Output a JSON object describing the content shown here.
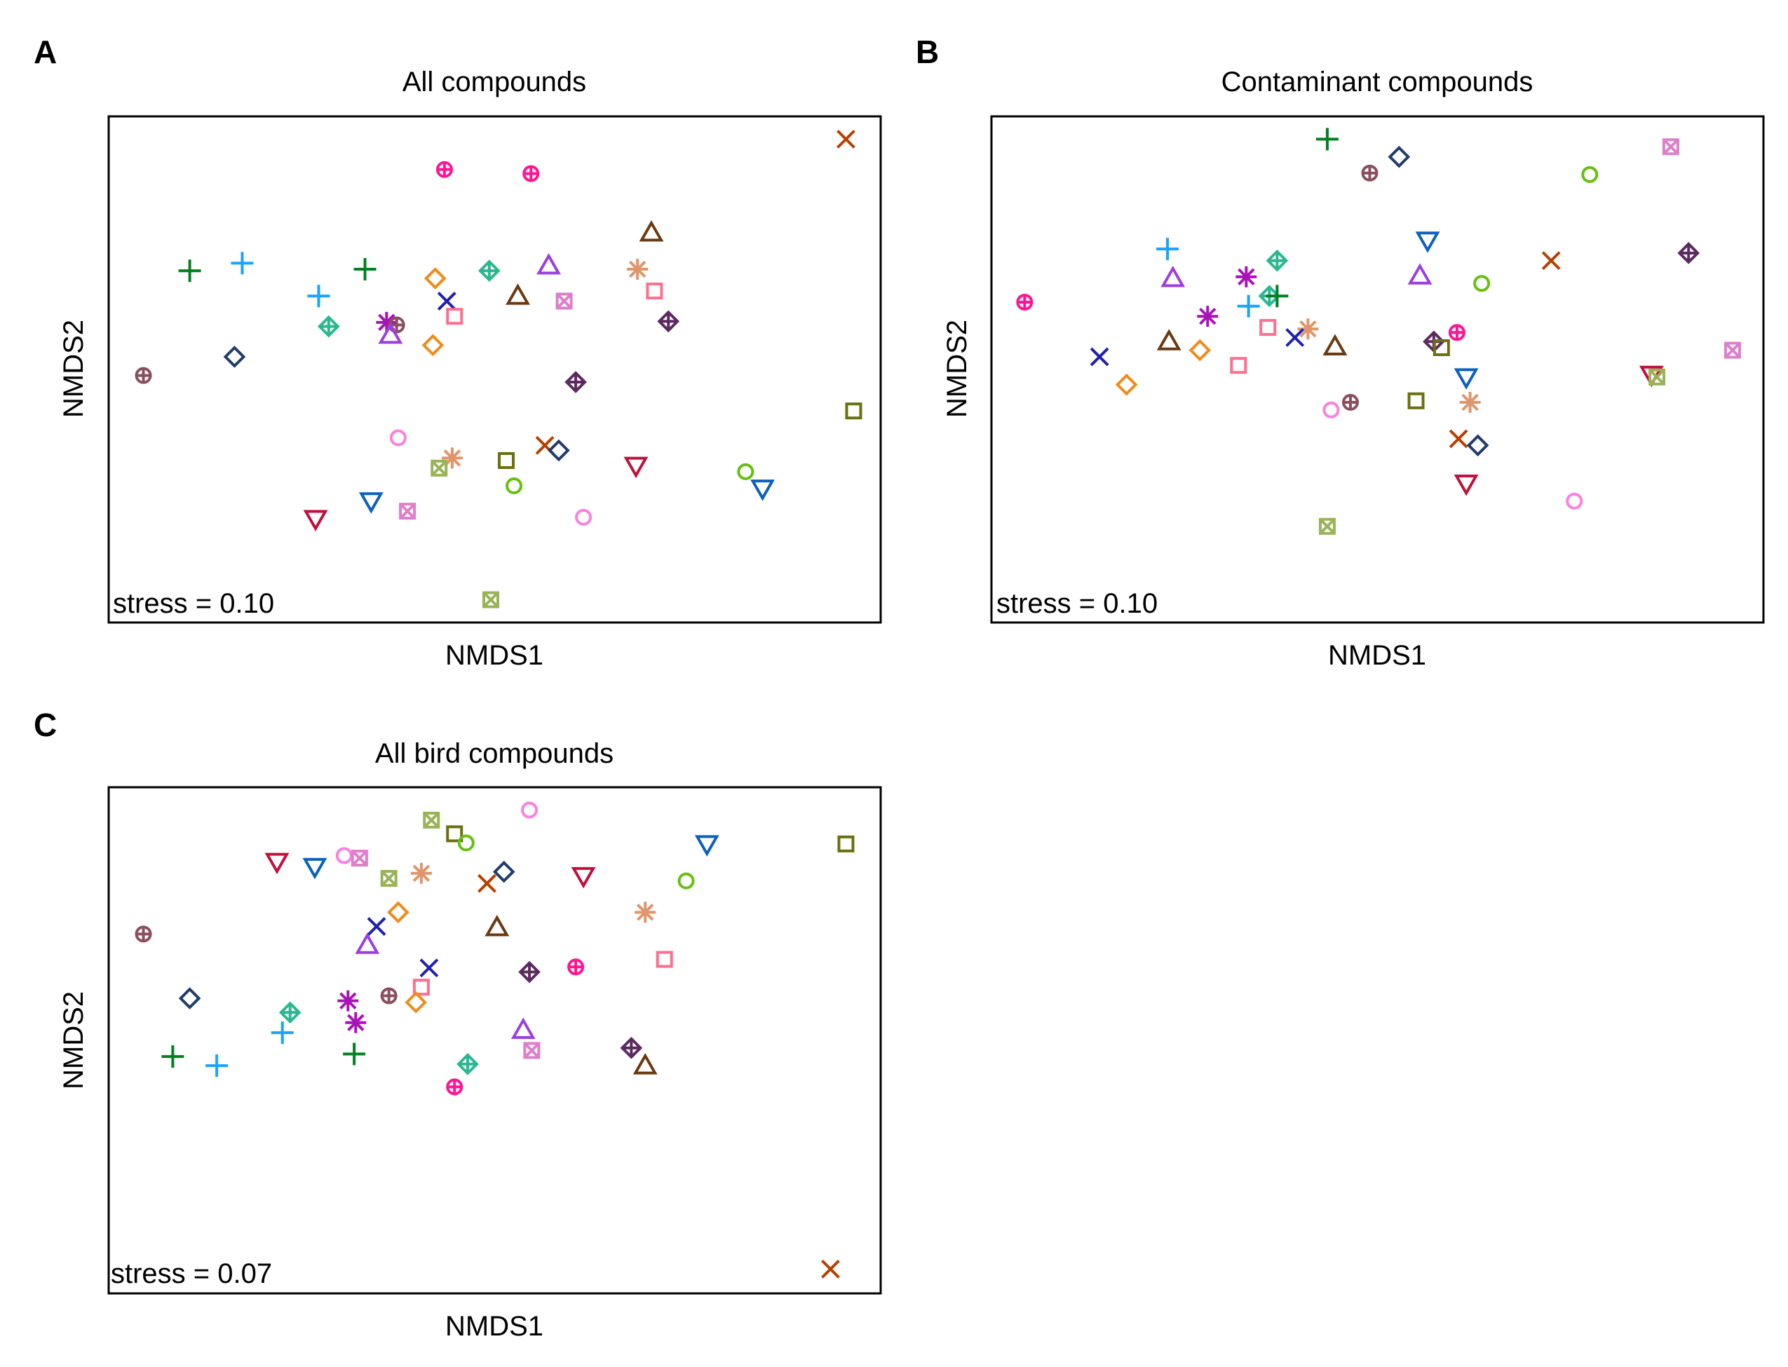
{
  "chart_data": [
    {
      "type": "scatter",
      "panel_label": "A",
      "title": "All compounds",
      "xlabel": "NMDS1",
      "ylabel": "NMDS2",
      "annotation": "stress = 0.10",
      "xlim": [
        0,
        100
      ],
      "ylim": [
        0,
        100
      ],
      "grid": false,
      "points": [
        {
          "x": 43.5,
          "y": 89.5,
          "shape": "circle-plus",
          "color": "#ff1493"
        },
        {
          "x": 54.7,
          "y": 88.7,
          "shape": "circle-plus",
          "color": "#ff1493"
        },
        {
          "x": 95.5,
          "y": 95.5,
          "shape": "x",
          "color": "#b84000"
        },
        {
          "x": 10.5,
          "y": 69.5,
          "shape": "plus",
          "color": "#008020"
        },
        {
          "x": 17.3,
          "y": 71.0,
          "shape": "plus",
          "color": "#1aa3ff"
        },
        {
          "x": 33.2,
          "y": 69.8,
          "shape": "plus",
          "color": "#008020"
        },
        {
          "x": 27.2,
          "y": 64.5,
          "shape": "plus",
          "color": "#1aa3ff"
        },
        {
          "x": 42.3,
          "y": 68.0,
          "shape": "diamond",
          "color": "#f08c1a"
        },
        {
          "x": 49.3,
          "y": 69.5,
          "shape": "diamond-plus",
          "color": "#2ab890"
        },
        {
          "x": 57.0,
          "y": 70.5,
          "shape": "triangle-up",
          "color": "#9b3fe0"
        },
        {
          "x": 70.3,
          "y": 77.0,
          "shape": "triangle-up",
          "color": "#6b3a10"
        },
        {
          "x": 68.5,
          "y": 69.8,
          "shape": "asterisk",
          "color": "#e0956a"
        },
        {
          "x": 70.7,
          "y": 65.5,
          "shape": "square",
          "color": "#ff6f8f"
        },
        {
          "x": 53.0,
          "y": 64.5,
          "shape": "triangle-up",
          "color": "#6b3a10"
        },
        {
          "x": 59.0,
          "y": 63.5,
          "shape": "square-x",
          "color": "#dd7fcb"
        },
        {
          "x": 43.8,
          "y": 63.5,
          "shape": "x",
          "color": "#2020b0"
        },
        {
          "x": 44.8,
          "y": 60.5,
          "shape": "square",
          "color": "#ff6f8f"
        },
        {
          "x": 72.5,
          "y": 59.5,
          "shape": "diamond-plus",
          "color": "#5c2a60"
        },
        {
          "x": 28.5,
          "y": 58.5,
          "shape": "diamond-plus",
          "color": "#2ab890"
        },
        {
          "x": 36.0,
          "y": 59.3,
          "shape": "asterisk",
          "color": "#a812b8"
        },
        {
          "x": 37.3,
          "y": 58.8,
          "shape": "circle-plus",
          "color": "#8a4f5f"
        },
        {
          "x": 36.5,
          "y": 56.8,
          "shape": "triangle-up",
          "color": "#9b3fe0"
        },
        {
          "x": 42.0,
          "y": 54.8,
          "shape": "diamond",
          "color": "#f08c1a"
        },
        {
          "x": 16.3,
          "y": 52.5,
          "shape": "diamond",
          "color": "#213c6b"
        },
        {
          "x": 4.5,
          "y": 48.8,
          "shape": "circle-plus",
          "color": "#8a4f5f"
        },
        {
          "x": 60.5,
          "y": 47.5,
          "shape": "diamond-plus",
          "color": "#5c2a60"
        },
        {
          "x": 96.5,
          "y": 41.8,
          "shape": "square",
          "color": "#6b7010"
        },
        {
          "x": 37.5,
          "y": 36.5,
          "shape": "circle",
          "color": "#ff80dd"
        },
        {
          "x": 44.5,
          "y": 32.5,
          "shape": "asterisk",
          "color": "#e0956a"
        },
        {
          "x": 42.8,
          "y": 30.5,
          "shape": "square-x",
          "color": "#99b359"
        },
        {
          "x": 51.5,
          "y": 32.0,
          "shape": "square",
          "color": "#6b7010"
        },
        {
          "x": 56.5,
          "y": 35.0,
          "shape": "x",
          "color": "#b84000"
        },
        {
          "x": 58.3,
          "y": 34.0,
          "shape": "diamond",
          "color": "#213c6b"
        },
        {
          "x": 68.3,
          "y": 31.0,
          "shape": "triangle-down",
          "color": "#c0103b"
        },
        {
          "x": 52.5,
          "y": 27.0,
          "shape": "circle",
          "color": "#66c010"
        },
        {
          "x": 82.5,
          "y": 29.8,
          "shape": "circle",
          "color": "#66c010"
        },
        {
          "x": 84.7,
          "y": 26.5,
          "shape": "triangle-down",
          "color": "#0b60c0"
        },
        {
          "x": 34.0,
          "y": 24.0,
          "shape": "triangle-down",
          "color": "#0b60c0"
        },
        {
          "x": 38.7,
          "y": 22.0,
          "shape": "square-x",
          "color": "#dd7fcb"
        },
        {
          "x": 26.8,
          "y": 20.5,
          "shape": "triangle-down",
          "color": "#c0103b"
        },
        {
          "x": 61.5,
          "y": 20.8,
          "shape": "circle",
          "color": "#ff80dd"
        },
        {
          "x": 49.5,
          "y": 4.5,
          "shape": "square-x",
          "color": "#99b359"
        }
      ]
    },
    {
      "type": "scatter",
      "panel_label": "B",
      "title": "Contaminant compounds",
      "xlabel": "NMDS1",
      "ylabel": "NMDS2",
      "annotation": "stress = 0.10",
      "xlim": [
        0,
        100
      ],
      "ylim": [
        0,
        100
      ],
      "grid": false,
      "points": [
        {
          "x": 43.5,
          "y": 95.5,
          "shape": "plus",
          "color": "#008020"
        },
        {
          "x": 52.8,
          "y": 92.0,
          "shape": "diamond",
          "color": "#213c6b"
        },
        {
          "x": 49.0,
          "y": 88.8,
          "shape": "circle-plus",
          "color": "#8a4f5f"
        },
        {
          "x": 88.0,
          "y": 94.0,
          "shape": "square-x",
          "color": "#dd7fcb"
        },
        {
          "x": 77.5,
          "y": 88.5,
          "shape": "circle",
          "color": "#66c010"
        },
        {
          "x": 22.8,
          "y": 73.8,
          "shape": "plus",
          "color": "#1aa3ff"
        },
        {
          "x": 37.0,
          "y": 71.5,
          "shape": "diamond-plus",
          "color": "#2ab890"
        },
        {
          "x": 56.5,
          "y": 75.5,
          "shape": "triangle-down",
          "color": "#0b60c0"
        },
        {
          "x": 72.5,
          "y": 71.5,
          "shape": "x",
          "color": "#b84000"
        },
        {
          "x": 90.3,
          "y": 73.0,
          "shape": "diamond-plus",
          "color": "#5c2a60"
        },
        {
          "x": 23.5,
          "y": 68.0,
          "shape": "triangle-up",
          "color": "#9b3fe0"
        },
        {
          "x": 33.0,
          "y": 68.3,
          "shape": "asterisk",
          "color": "#a812b8"
        },
        {
          "x": 55.5,
          "y": 68.5,
          "shape": "triangle-up",
          "color": "#9b3fe0"
        },
        {
          "x": 63.5,
          "y": 67.0,
          "shape": "circle",
          "color": "#66c010"
        },
        {
          "x": 36.0,
          "y": 64.5,
          "shape": "diamond-plus",
          "color": "#2ab890"
        },
        {
          "x": 37.0,
          "y": 64.5,
          "shape": "plus",
          "color": "#008020"
        },
        {
          "x": 33.3,
          "y": 62.5,
          "shape": "plus",
          "color": "#1aa3ff"
        },
        {
          "x": 4.3,
          "y": 63.3,
          "shape": "circle-plus",
          "color": "#ff1493"
        },
        {
          "x": 28.0,
          "y": 60.5,
          "shape": "asterisk",
          "color": "#a812b8"
        },
        {
          "x": 35.8,
          "y": 58.3,
          "shape": "square",
          "color": "#ff6f8f"
        },
        {
          "x": 41.0,
          "y": 58.0,
          "shape": "asterisk",
          "color": "#e0956a"
        },
        {
          "x": 39.3,
          "y": 56.3,
          "shape": "x",
          "color": "#2020b0"
        },
        {
          "x": 60.3,
          "y": 57.3,
          "shape": "circle-plus",
          "color": "#ff1493"
        },
        {
          "x": 57.3,
          "y": 55.5,
          "shape": "diamond-plus",
          "color": "#5c2a60"
        },
        {
          "x": 23.0,
          "y": 55.5,
          "shape": "triangle-up",
          "color": "#6b3a10"
        },
        {
          "x": 27.0,
          "y": 53.8,
          "shape": "diamond",
          "color": "#f08c1a"
        },
        {
          "x": 44.5,
          "y": 54.5,
          "shape": "triangle-up",
          "color": "#6b3a10"
        },
        {
          "x": 58.3,
          "y": 54.3,
          "shape": "square",
          "color": "#6b7010"
        },
        {
          "x": 96.0,
          "y": 53.8,
          "shape": "square-x",
          "color": "#dd7fcb"
        },
        {
          "x": 14.0,
          "y": 52.5,
          "shape": "x",
          "color": "#2020b0"
        },
        {
          "x": 32.0,
          "y": 50.8,
          "shape": "square",
          "color": "#ff6f8f"
        },
        {
          "x": 85.5,
          "y": 49.0,
          "shape": "triangle-down",
          "color": "#c0103b"
        },
        {
          "x": 86.2,
          "y": 48.5,
          "shape": "square-x",
          "color": "#99b359"
        },
        {
          "x": 61.5,
          "y": 48.5,
          "shape": "triangle-down",
          "color": "#0b60c0"
        },
        {
          "x": 17.5,
          "y": 47.0,
          "shape": "diamond",
          "color": "#f08c1a"
        },
        {
          "x": 46.5,
          "y": 43.5,
          "shape": "circle-plus",
          "color": "#8a4f5f"
        },
        {
          "x": 55.0,
          "y": 43.8,
          "shape": "square",
          "color": "#6b7010"
        },
        {
          "x": 62.0,
          "y": 43.5,
          "shape": "asterisk",
          "color": "#e0956a"
        },
        {
          "x": 44.0,
          "y": 42.0,
          "shape": "circle",
          "color": "#ff80dd"
        },
        {
          "x": 60.5,
          "y": 36.3,
          "shape": "x",
          "color": "#b84000"
        },
        {
          "x": 63.0,
          "y": 35.0,
          "shape": "diamond",
          "color": "#213c6b"
        },
        {
          "x": 61.5,
          "y": 27.5,
          "shape": "triangle-down",
          "color": "#c0103b"
        },
        {
          "x": 75.5,
          "y": 24.0,
          "shape": "circle",
          "color": "#ff80dd"
        },
        {
          "x": 43.5,
          "y": 19.0,
          "shape": "square-x",
          "color": "#99b359"
        }
      ]
    },
    {
      "type": "scatter",
      "panel_label": "C",
      "title": "All bird compounds",
      "xlabel": "NMDS1",
      "ylabel": "NMDS2",
      "annotation": "stress = 0.07",
      "xlim": [
        0,
        100
      ],
      "ylim": [
        0,
        100
      ],
      "grid": false,
      "points": [
        {
          "x": 54.5,
          "y": 95.5,
          "shape": "circle",
          "color": "#ff80dd"
        },
        {
          "x": 41.8,
          "y": 93.5,
          "shape": "square-x",
          "color": "#99b359"
        },
        {
          "x": 44.8,
          "y": 90.8,
          "shape": "square",
          "color": "#6b7010"
        },
        {
          "x": 46.3,
          "y": 89.0,
          "shape": "circle",
          "color": "#66c010"
        },
        {
          "x": 77.5,
          "y": 88.8,
          "shape": "triangle-down",
          "color": "#0b60c0"
        },
        {
          "x": 95.5,
          "y": 88.8,
          "shape": "square",
          "color": "#6b7010"
        },
        {
          "x": 21.8,
          "y": 85.3,
          "shape": "triangle-down",
          "color": "#c0103b"
        },
        {
          "x": 30.5,
          "y": 86.5,
          "shape": "circle",
          "color": "#ff80dd"
        },
        {
          "x": 32.5,
          "y": 86.0,
          "shape": "square-x",
          "color": "#dd7fcb"
        },
        {
          "x": 26.7,
          "y": 84.3,
          "shape": "triangle-down",
          "color": "#0b60c0"
        },
        {
          "x": 36.3,
          "y": 82.0,
          "shape": "square-x",
          "color": "#99b359"
        },
        {
          "x": 40.5,
          "y": 83.0,
          "shape": "asterisk",
          "color": "#e0956a"
        },
        {
          "x": 51.2,
          "y": 83.3,
          "shape": "diamond",
          "color": "#213c6b"
        },
        {
          "x": 49.0,
          "y": 81.0,
          "shape": "x",
          "color": "#b84000"
        },
        {
          "x": 61.5,
          "y": 82.5,
          "shape": "triangle-down",
          "color": "#c0103b"
        },
        {
          "x": 74.8,
          "y": 81.5,
          "shape": "circle",
          "color": "#66c010"
        },
        {
          "x": 37.5,
          "y": 75.3,
          "shape": "diamond",
          "color": "#f08c1a"
        },
        {
          "x": 69.5,
          "y": 75.3,
          "shape": "asterisk",
          "color": "#e0956a"
        },
        {
          "x": 4.5,
          "y": 71.0,
          "shape": "circle-plus",
          "color": "#8a4f5f"
        },
        {
          "x": 34.7,
          "y": 72.5,
          "shape": "x",
          "color": "#2020b0"
        },
        {
          "x": 50.3,
          "y": 72.3,
          "shape": "triangle-up",
          "color": "#6b3a10"
        },
        {
          "x": 33.5,
          "y": 68.8,
          "shape": "triangle-up",
          "color": "#9b3fe0"
        },
        {
          "x": 72.0,
          "y": 66.0,
          "shape": "square",
          "color": "#ff6f8f"
        },
        {
          "x": 41.5,
          "y": 64.3,
          "shape": "x",
          "color": "#2020b0"
        },
        {
          "x": 60.5,
          "y": 64.5,
          "shape": "circle-plus",
          "color": "#ff1493"
        },
        {
          "x": 54.5,
          "y": 63.5,
          "shape": "diamond-plus",
          "color": "#5c2a60"
        },
        {
          "x": 40.5,
          "y": 60.5,
          "shape": "square",
          "color": "#ff6f8f"
        },
        {
          "x": 36.3,
          "y": 58.8,
          "shape": "circle-plus",
          "color": "#8a4f5f"
        },
        {
          "x": 39.8,
          "y": 57.5,
          "shape": "diamond",
          "color": "#f08c1a"
        },
        {
          "x": 10.5,
          "y": 58.3,
          "shape": "diamond",
          "color": "#213c6b"
        },
        {
          "x": 31.0,
          "y": 57.8,
          "shape": "asterisk",
          "color": "#a812b8"
        },
        {
          "x": 23.5,
          "y": 55.5,
          "shape": "diamond-plus",
          "color": "#2ab890"
        },
        {
          "x": 32.0,
          "y": 53.5,
          "shape": "asterisk",
          "color": "#a812b8"
        },
        {
          "x": 22.5,
          "y": 51.5,
          "shape": "plus",
          "color": "#1aa3ff"
        },
        {
          "x": 53.7,
          "y": 52.0,
          "shape": "triangle-up",
          "color": "#9b3fe0"
        },
        {
          "x": 67.7,
          "y": 48.5,
          "shape": "diamond-plus",
          "color": "#5c2a60"
        },
        {
          "x": 54.8,
          "y": 48.0,
          "shape": "square-x",
          "color": "#dd7fcb"
        },
        {
          "x": 8.3,
          "y": 46.8,
          "shape": "plus",
          "color": "#008020"
        },
        {
          "x": 14.0,
          "y": 45.0,
          "shape": "plus",
          "color": "#1aa3ff"
        },
        {
          "x": 31.8,
          "y": 47.3,
          "shape": "plus",
          "color": "#008020"
        },
        {
          "x": 46.5,
          "y": 45.3,
          "shape": "diamond-plus",
          "color": "#2ab890"
        },
        {
          "x": 69.5,
          "y": 45.0,
          "shape": "triangle-up",
          "color": "#6b3a10"
        },
        {
          "x": 44.8,
          "y": 40.8,
          "shape": "circle-plus",
          "color": "#ff1493"
        },
        {
          "x": 93.5,
          "y": 4.8,
          "shape": "x",
          "color": "#b84000"
        }
      ]
    }
  ]
}
